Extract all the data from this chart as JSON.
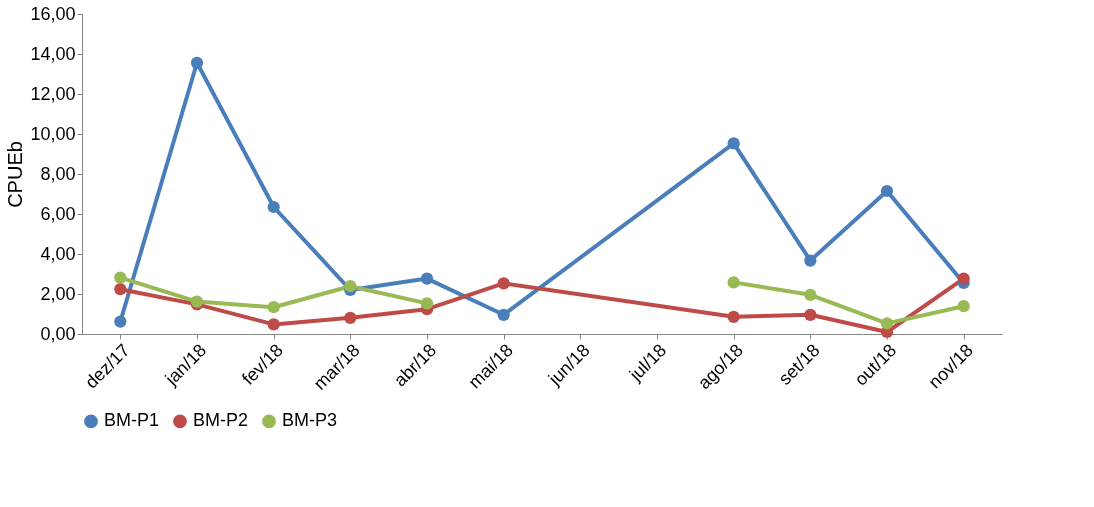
{
  "chart_data": {
    "type": "line",
    "ylabel": "CPUEb",
    "categories": [
      "dez/17",
      "jan/18",
      "fev/18",
      "mar/18",
      "abr/18",
      "mai/18",
      "jun/18",
      "jul/18",
      "ago/18",
      "set/18",
      "out/18",
      "nov/18"
    ],
    "series": [
      {
        "name": "BM-P1",
        "color": "#4a7ebb",
        "x": [
          "dez/17",
          "jan/18",
          "fev/18",
          "mar/18",
          "abr/18",
          "mai/18",
          "ago/18",
          "set/18",
          "out/18",
          "nov/18"
        ],
        "values": [
          0.62,
          13.56,
          6.35,
          2.2,
          2.77,
          0.96,
          9.53,
          3.67,
          7.15,
          2.55
        ]
      },
      {
        "name": "BM-P2",
        "color": "#be4b48",
        "x": [
          "dez/17",
          "jan/18",
          "fev/18",
          "mar/18",
          "abr/18",
          "mai/18",
          "ago/18",
          "set/18",
          "out/18",
          "nov/18"
        ],
        "values": [
          2.24,
          1.48,
          0.48,
          0.81,
          1.24,
          2.53,
          0.86,
          0.96,
          0.1,
          2.77
        ]
      },
      {
        "name": "BM-P3",
        "color": "#98b954",
        "values": [
          2.82,
          1.62,
          1.34,
          2.39,
          1.53,
          null,
          null,
          null,
          2.58,
          1.96,
          0.53,
          1.39
        ]
      }
    ],
    "ylim": [
      0,
      16
    ],
    "yticks": [
      {
        "value": 0,
        "label": "0,00"
      },
      {
        "value": 2,
        "label": "2,00"
      },
      {
        "value": 4,
        "label": "4,00"
      },
      {
        "value": 6,
        "label": "6,00"
      },
      {
        "value": 8,
        "label": "8,00"
      },
      {
        "value": 10,
        "label": "10,00"
      },
      {
        "value": 12,
        "label": "12,00"
      },
      {
        "value": 14,
        "label": "14,00"
      },
      {
        "value": 16,
        "label": "16,00"
      }
    ],
    "grid": false,
    "legend": "bottom",
    "marker": "circle",
    "line_style": "solid"
  }
}
